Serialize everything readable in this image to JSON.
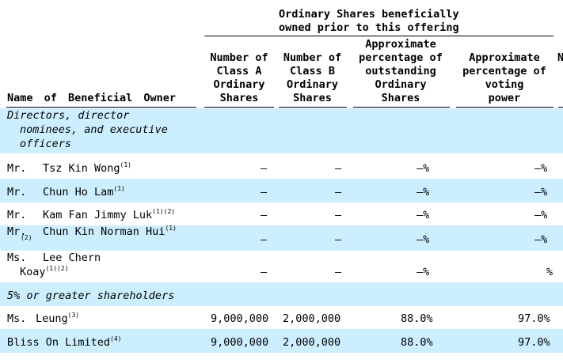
{
  "header": {
    "group_title_line1": "Ordinary Shares beneficially",
    "group_title_line2": "owned prior to this offering",
    "col_name": "Name of Beneficial Owner",
    "col_class_a": [
      "Number of",
      "Class A",
      "Ordinary",
      "Shares"
    ],
    "col_class_b": [
      "Number of",
      "Class B",
      "Ordinary",
      "Shares"
    ],
    "col_pct_outstanding": [
      "Approximate",
      "percentage of",
      "outstanding",
      "Ordinary",
      "Shares"
    ],
    "col_pct_voting": [
      "Approximate",
      "percentage of",
      "voting",
      "power"
    ],
    "col_clipped": "N"
  },
  "sections": {
    "directors_line1": "Directors, director",
    "directors_line2": "nominees, and executive",
    "directors_line3": "officers",
    "shareholders": "5% or greater shareholders"
  },
  "rows": [
    {
      "title": "Mr.",
      "name": "Tsz Kin Wong",
      "notes": "(1)",
      "class_a": "—",
      "class_b": "—",
      "pct_out": "—%",
      "pct_vote": "—%"
    },
    {
      "title": "Mr.",
      "name": "Chun Ho Lam",
      "notes": "(1)",
      "class_a": "—",
      "class_b": "—",
      "pct_out": "—%",
      "pct_vote": "—%"
    },
    {
      "title": "Mr.",
      "name": "Kam Fan Jimmy Luk",
      "notes": "(1)(2)",
      "class_a": "—",
      "class_b": "—",
      "pct_out": "—%",
      "pct_vote": "—%"
    },
    {
      "title": "Mr.",
      "name": "Chun Kin Norman Hui",
      "notes": "(1)",
      "notes_below": "(2)",
      "class_a": "—",
      "class_b": "—",
      "pct_out": "—%",
      "pct_vote": "—%"
    },
    {
      "title": "Ms.",
      "name": "Lee Chern",
      "name_line2": "Koay",
      "notes": "(1)(2)",
      "class_a": "—",
      "class_b": "—",
      "pct_out": "—%",
      "pct_vote": "%"
    },
    {
      "title": "Ms.",
      "name": "Leung",
      "notes": "(3)",
      "class_a": "9,000,000",
      "class_b": "2,000,000",
      "pct_out": "88.0%",
      "pct_vote": "97.0%"
    },
    {
      "title": "",
      "name": "Bliss On Limited",
      "notes": "(4)",
      "class_a": "9,000,000",
      "class_b": "2,000,000",
      "pct_out": "88.0%",
      "pct_vote": "97.0%"
    }
  ]
}
